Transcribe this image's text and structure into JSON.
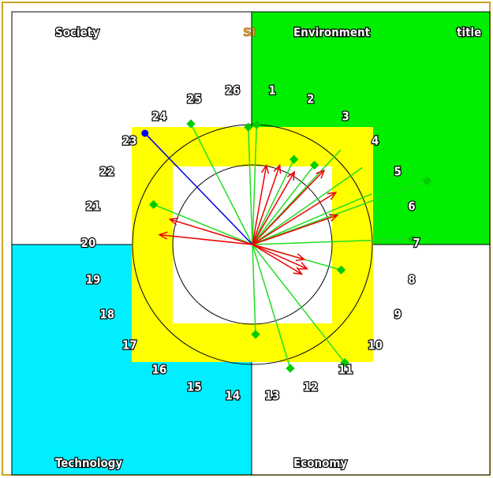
{
  "chart_data": {
    "type": "radial-vector-diagram",
    "quadrants": {
      "top_left": {
        "label": "Society",
        "color": "#ffffff"
      },
      "top_right": {
        "label": "Environment",
        "color": "#00ee00"
      },
      "bottom_left": {
        "label": "Technology",
        "color": "#00eeff"
      },
      "bottom_right": {
        "label": "Economy",
        "color": "#ffffff"
      }
    },
    "title": "title",
    "center_label": "SI",
    "spoke_numbers": [
      "1",
      "2",
      "3",
      "4",
      "5",
      "6",
      "7",
      "8",
      "9",
      "10",
      "11",
      "12",
      "13",
      "14",
      "15",
      "16",
      "17",
      "18",
      "19",
      "20",
      "21",
      "22",
      "23",
      "24",
      "25",
      "26"
    ],
    "colors": {
      "frame_border": "#c9a227",
      "spoke_line": "#22dd22",
      "marker": "#00cc00",
      "arrow": "#ee0000",
      "highlight_line": "#0000dd",
      "highlight_dot": "#0000ff",
      "band": "#ffff00",
      "circle": "#000000",
      "center_label": "#f0a830"
    },
    "green_spokes": [
      {
        "angle": 2,
        "radius": 1.0
      },
      {
        "angle": 26,
        "radius": 0.79
      },
      {
        "angle": 38,
        "radius": 0.84
      },
      {
        "angle": 70,
        "radius": 1.55
      },
      {
        "angle": 88,
        "radius": 1.33
      },
      {
        "angle": 106,
        "radius": 0.77
      },
      {
        "angle": 142,
        "radius": 1.25
      },
      {
        "angle": 163,
        "radius": 1.08
      },
      {
        "angle": 178,
        "radius": 0.75
      },
      {
        "angle": 292,
        "radius": 0.89
      },
      {
        "angle": 333,
        "radius": 1.13
      },
      {
        "angle": 358,
        "radius": 0.98
      }
    ],
    "plain_spokes": [
      {
        "angle": 43,
        "radius": 1.08
      },
      {
        "angle": 55,
        "radius": 1.12
      },
      {
        "angle": 67,
        "radius": 1.08
      }
    ],
    "red_arrows": [
      {
        "angle": 10,
        "radius": 0.67
      },
      {
        "angle": 19,
        "radius": 0.7
      },
      {
        "angle": 30,
        "radius": 0.7
      },
      {
        "angle": 44,
        "radius": 0.86
      },
      {
        "angle": 58,
        "radius": 0.82
      },
      {
        "angle": 71,
        "radius": 0.75
      },
      {
        "angle": 106,
        "radius": 0.45
      },
      {
        "angle": 114,
        "radius": 0.5
      },
      {
        "angle": 121,
        "radius": 0.48
      },
      {
        "angle": 276,
        "radius": 0.78
      },
      {
        "angle": 287,
        "radius": 0.72
      }
    ],
    "highlight_spoke": {
      "angle": 316,
      "radius": 1.29
    }
  }
}
